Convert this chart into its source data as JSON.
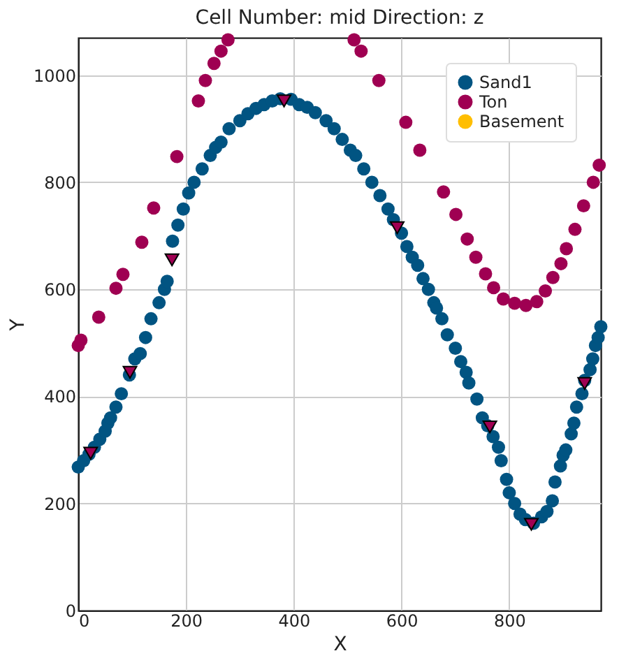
{
  "chart_data": {
    "type": "scatter",
    "title": "Cell Number: mid Direction: z",
    "xlabel": "X",
    "ylabel": "Y",
    "xlim": [
      0,
      970
    ],
    "ylim": [
      0,
      1070
    ],
    "xticks": [
      0,
      200,
      400,
      600,
      800
    ],
    "yticks": [
      0,
      200,
      400,
      600,
      800,
      1000
    ],
    "grid": true,
    "legend": "top right",
    "marker": "circle",
    "series": [
      {
        "name": "Sand1",
        "color": "#015482",
        "x": [
          0,
          10,
          20,
          30,
          40,
          50,
          55,
          60,
          70,
          80,
          95,
          105,
          115,
          125,
          135,
          150,
          160,
          165,
          175,
          185,
          195,
          205,
          215,
          230,
          245,
          255,
          265,
          280,
          300,
          315,
          330,
          345,
          360,
          375,
          395,
          410,
          425,
          440,
          460,
          475,
          490,
          505,
          515,
          530,
          545,
          560,
          575,
          585,
          600,
          610,
          620,
          630,
          640,
          650,
          660,
          665,
          675,
          685,
          700,
          710,
          720,
          725,
          740,
          750,
          760,
          770,
          780,
          785,
          795,
          800,
          810,
          820,
          830,
          845,
          860,
          870,
          880,
          885,
          895,
          900,
          905,
          915,
          920,
          925,
          935,
          940,
          950,
          955,
          960,
          965,
          970
        ],
        "values": [
          268,
          280,
          292,
          305,
          320,
          335,
          350,
          360,
          380,
          405,
          440,
          470,
          480,
          510,
          545,
          575,
          600,
          615,
          690,
          720,
          750,
          780,
          800,
          825,
          850,
          865,
          875,
          900,
          915,
          928,
          938,
          945,
          952,
          956,
          955,
          945,
          940,
          930,
          915,
          900,
          880,
          860,
          850,
          825,
          800,
          775,
          750,
          730,
          705,
          680,
          660,
          645,
          620,
          600,
          575,
          565,
          545,
          515,
          490,
          465,
          445,
          425,
          395,
          360,
          345,
          325,
          305,
          280,
          245,
          220,
          200,
          180,
          170,
          163,
          175,
          185,
          205,
          240,
          270,
          290,
          300,
          330,
          350,
          380,
          405,
          430,
          450,
          470,
          495,
          510,
          530
        ]
      },
      {
        "name": "Ton",
        "color": "#9f0052",
        "x": [
          0,
          5,
          38,
          70,
          83,
          118,
          140,
          183,
          223,
          236,
          252,
          265,
          278,
          512,
          525,
          558,
          608,
          634,
          678,
          701,
          722,
          738,
          756,
          771,
          789,
          810,
          831,
          851,
          867,
          881,
          896,
          906,
          922,
          938,
          956,
          967
        ],
        "values": [
          495,
          505,
          548,
          602,
          628,
          688,
          752,
          848,
          952,
          990,
          1022,
          1045,
          1066,
          1066,
          1045,
          990,
          912,
          860,
          782,
          740,
          694,
          660,
          629,
          603,
          582,
          574,
          570,
          577,
          597,
          622,
          648,
          676,
          712,
          756,
          800,
          832
        ]
      },
      {
        "name": "Basement",
        "color": "#ffbe00"
      },
      {
        "color": "#9f0052",
        "marker": "triangle",
        "x": [
          23,
          96,
          174,
          382,
          592,
          764,
          841,
          940
        ],
        "values": [
          294,
          445,
          655,
          952,
          715,
          343,
          161,
          424
        ]
      }
    ]
  }
}
